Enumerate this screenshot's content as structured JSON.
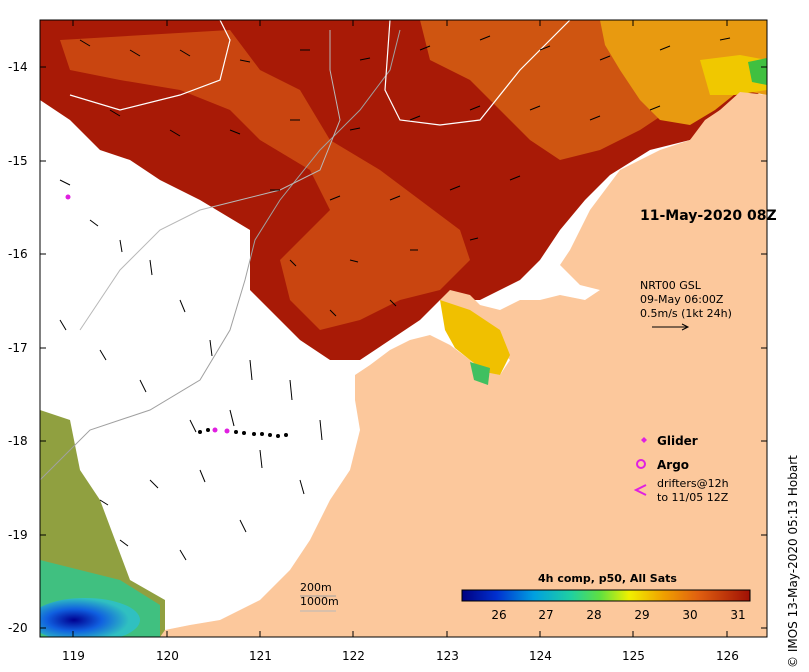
{
  "axes": {
    "lat_labels": [
      "-14",
      "-15",
      "-16",
      "-17",
      "-18",
      "-19",
      "-20"
    ],
    "lon_labels": [
      "119",
      "120",
      "121",
      "122",
      "123",
      "124",
      "125",
      "126"
    ]
  },
  "timestamp": "11-May-2020 08Z",
  "currents": {
    "source": "NRT00 GSL",
    "time": "09-May 06:00Z",
    "scale": "0.5m/s (1kt 24h)"
  },
  "legend": {
    "glider": "Glider",
    "argo": "Argo",
    "drifters_line1": "drifters@12h",
    "drifters_line2": "to 11/05 12Z",
    "contour_200": "200m",
    "contour_1000": "1000m"
  },
  "colorbar": {
    "title": "4h comp, p50, All Sats",
    "ticks": [
      "26",
      "27",
      "28",
      "29",
      "30",
      "31"
    ]
  },
  "credit": "© IMOS 13-May-2020 05:13 Hobart",
  "colors": {
    "land": "#fcc89c",
    "sst_hot": "#a01505",
    "sst_mid": "#cc4a10",
    "sst_warm": "#e88c10",
    "marker": "#e020e0"
  }
}
